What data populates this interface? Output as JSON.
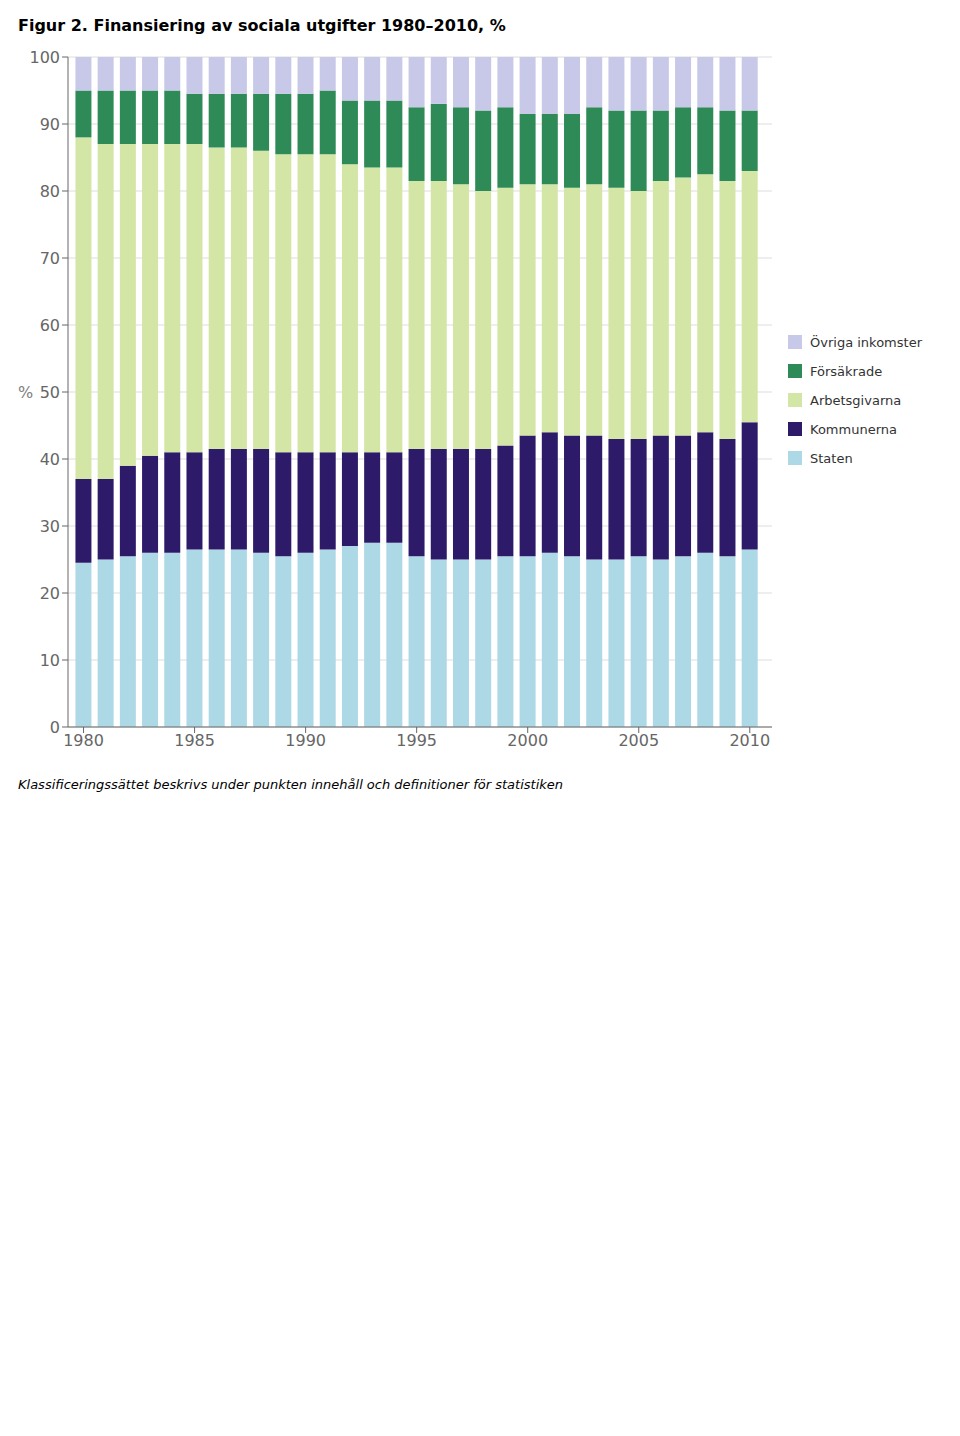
{
  "chart_data": {
    "type": "bar",
    "title": "Figur 2. Finansiering av sociala utgifter 1980–2010, %",
    "ylabel": "%",
    "stacked": true,
    "grid": true,
    "legend": "right",
    "x": [
      1980,
      1981,
      1982,
      1983,
      1984,
      1985,
      1986,
      1987,
      1988,
      1989,
      1990,
      1991,
      1992,
      1993,
      1994,
      1995,
      1996,
      1997,
      1998,
      1999,
      2000,
      2001,
      2002,
      2003,
      2004,
      2005,
      2006,
      2007,
      2008,
      2009,
      2010
    ],
    "xlim": [
      1979.3,
      2011.0
    ],
    "xticks": [
      1980,
      1985,
      1990,
      1995,
      2000,
      2005,
      2010
    ],
    "ylim": [
      0,
      100
    ],
    "yticks": [
      0,
      10,
      20,
      30,
      40,
      50,
      60,
      70,
      80,
      90,
      100
    ],
    "series": [
      {
        "name": "Staten",
        "color": "#ADD8E6",
        "values": [
          24.5,
          25.0,
          25.5,
          26.0,
          26.0,
          26.5,
          26.5,
          26.5,
          26.0,
          25.5,
          26.0,
          26.5,
          27.0,
          27.5,
          27.5,
          25.5,
          25.0,
          25.0,
          25.0,
          25.5,
          25.5,
          26.0,
          25.5,
          25.0,
          25.0,
          25.5,
          25.0,
          25.5,
          26.0,
          25.5,
          26.5
        ]
      },
      {
        "name": "Kommunerna",
        "color": "#2D1B69",
        "values": [
          12.5,
          12.0,
          13.5,
          14.5,
          15.0,
          14.5,
          15.0,
          15.0,
          15.5,
          15.5,
          15.0,
          14.5,
          14.0,
          13.5,
          13.5,
          16.0,
          16.5,
          16.5,
          16.5,
          16.5,
          18.0,
          18.0,
          18.0,
          18.5,
          18.0,
          17.5,
          18.5,
          18.0,
          18.0,
          17.5,
          19.0
        ]
      },
      {
        "name": "Arbetsgivarna",
        "color": "#D4E6A5",
        "values": [
          51.0,
          50.0,
          48.0,
          46.5,
          46.0,
          46.0,
          45.0,
          45.0,
          44.5,
          44.5,
          44.5,
          44.5,
          43.0,
          42.5,
          42.5,
          40.0,
          40.0,
          39.5,
          38.5,
          38.5,
          37.5,
          37.0,
          37.0,
          37.5,
          37.5,
          37.0,
          38.0,
          38.5,
          38.5,
          38.5,
          37.5
        ]
      },
      {
        "name": "Försäkrade",
        "color": "#2E8B57",
        "values": [
          7.0,
          8.0,
          8.0,
          8.0,
          8.0,
          7.5,
          8.0,
          8.0,
          8.5,
          9.0,
          9.0,
          9.5,
          9.5,
          10.0,
          10.0,
          11.0,
          11.5,
          11.5,
          12.0,
          12.0,
          10.5,
          10.5,
          11.0,
          11.5,
          11.5,
          12.0,
          10.5,
          10.5,
          10.0,
          10.5,
          9.0
        ]
      },
      {
        "name": "Övriga inkomster",
        "color": "#C8C8E8",
        "values": [
          5.0,
          5.0,
          5.0,
          5.0,
          5.0,
          5.5,
          5.5,
          5.5,
          5.5,
          5.5,
          5.5,
          5.0,
          6.5,
          6.5,
          6.5,
          7.5,
          7.0,
          7.5,
          8.0,
          7.5,
          8.5,
          8.5,
          8.5,
          7.5,
          8.0,
          8.0,
          8.0,
          7.5,
          7.5,
          8.0,
          8.0
        ]
      }
    ],
    "annotations": [
      "Klassificeringssättet beskrivs under punkten innehåll och definitioner för statistiken"
    ]
  }
}
